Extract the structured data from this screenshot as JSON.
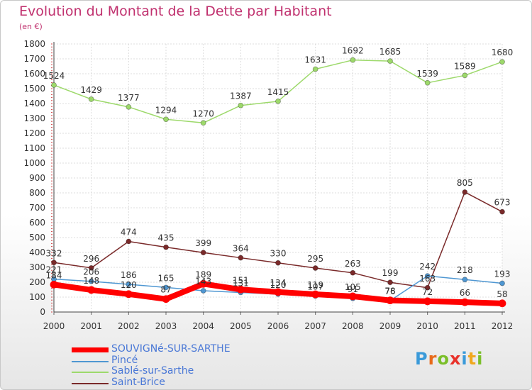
{
  "chart_data": {
    "type": "line",
    "title": "Evolution du Montant de la Dette par Habitant",
    "subtitle": "(en €)",
    "x": [
      "2000",
      "2001",
      "2002",
      "2003",
      "2004",
      "2005",
      "2006",
      "2007",
      "2008",
      "2009",
      "2010",
      "2011",
      "2012"
    ],
    "ylim": [
      0,
      1800
    ],
    "yticks": [
      0,
      100,
      200,
      300,
      400,
      500,
      600,
      700,
      800,
      900,
      1000,
      1100,
      1200,
      1300,
      1400,
      1500,
      1600,
      1700,
      1800
    ],
    "grid": true,
    "legend_position": "bottom-left",
    "series": [
      {
        "name": "SOUVIGNé-SUR-SARTHE",
        "color": "#ff0000",
        "values": [
          184,
          148,
          120,
          87,
          189,
          151,
          134,
          119,
          105,
          78,
          72,
          66,
          58
        ],
        "labels": [
          "184",
          "148",
          "120",
          "87",
          "189",
          "151",
          "134",
          "119",
          "105",
          "78",
          "72",
          "66",
          "58"
        ]
      },
      {
        "name": "Pincé",
        "color": "#4f97d2",
        "values": [
          221,
          206,
          186,
          165,
          143,
          131,
          120,
          107,
          91,
          76,
          242,
          218,
          193
        ],
        "labels": [
          "221",
          "206",
          "186",
          "165",
          "143",
          "131",
          "120",
          "107",
          "91",
          "76",
          "242",
          "218",
          "193"
        ]
      },
      {
        "name": "Sablé-sur-Sarthe",
        "color": "#9dd96b",
        "values": [
          1524,
          1429,
          1377,
          1294,
          1270,
          1387,
          1415,
          1631,
          1692,
          1685,
          1539,
          1589,
          1680
        ],
        "labels": [
          "1524",
          "1429",
          "1377",
          "1294",
          "1270",
          "1387",
          "1415",
          "1631",
          "1692",
          "1685",
          "1539",
          "1589",
          "1680"
        ]
      },
      {
        "name": "Saint-Brice",
        "color": "#7a2a2a",
        "values": [
          332,
          296,
          474,
          435,
          399,
          364,
          330,
          295,
          263,
          199,
          163,
          805,
          673
        ],
        "labels": [
          "332",
          "296",
          "474",
          "435",
          "399",
          "364",
          "330",
          "295",
          "263",
          "199",
          "163",
          "805",
          "673"
        ]
      }
    ]
  },
  "legend": {
    "items": [
      {
        "label": "SOUVIGNé-SUR-SARTHE",
        "color": "#ff0000"
      },
      {
        "label": "Pincé",
        "color": "#4f97d2"
      },
      {
        "label": "Sablé-sur-Sarthe",
        "color": "#9dd96b"
      },
      {
        "label": "Saint-Brice",
        "color": "#7a2a2a"
      }
    ]
  },
  "logo": {
    "text": "Proxiti",
    "colors": [
      "#3a9ad9",
      "#e86a1a",
      "#7bbf2a",
      "#e8312a",
      "#3a9ad9",
      "#f0a81e",
      "#7bbf2a"
    ]
  }
}
